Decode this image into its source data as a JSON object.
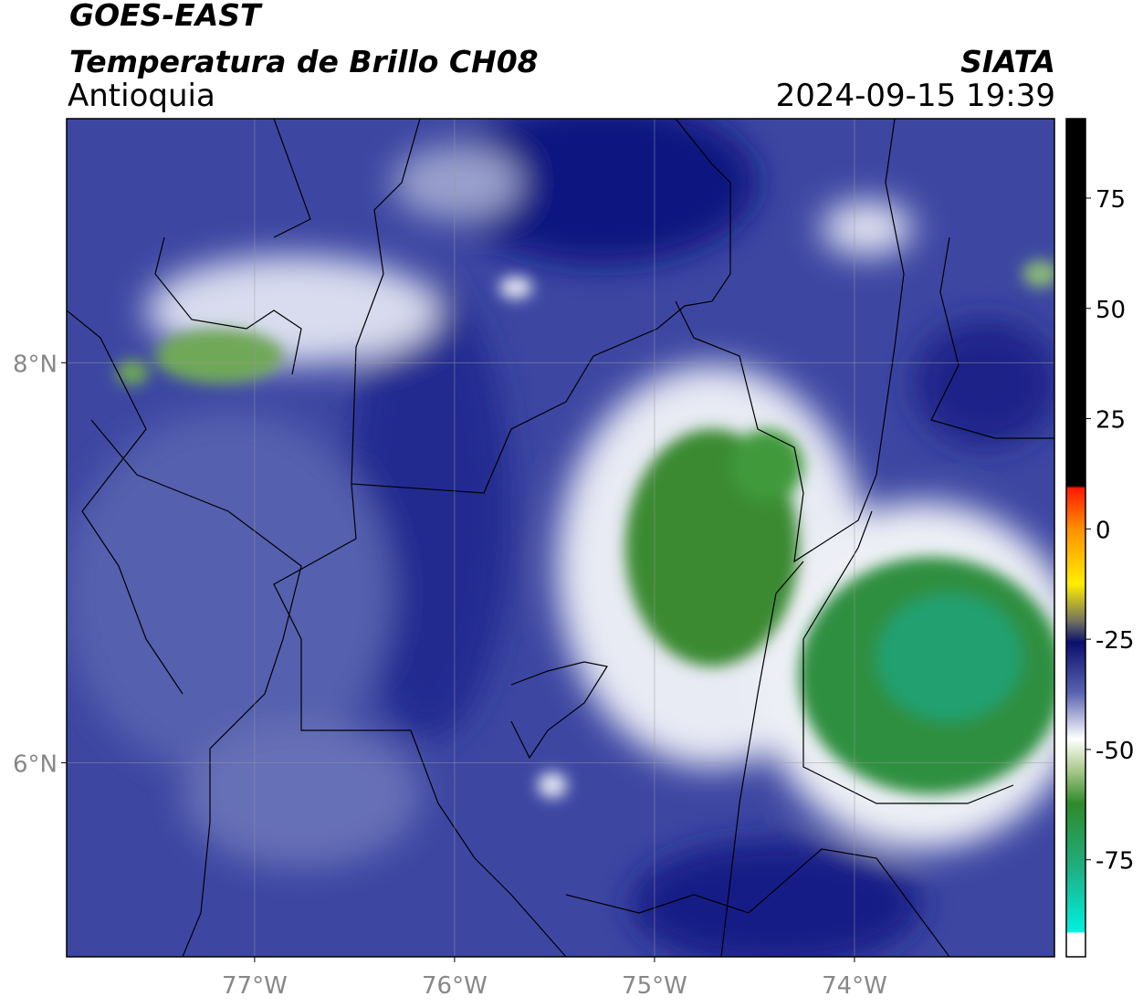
{
  "header": {
    "title": "GOES-EAST",
    "subtitle": "Temperatura de Brillo CH08",
    "region": "Antioquia",
    "source": "SIATA",
    "datetime": "2024-09-15 19:39"
  },
  "map": {
    "xlim": [
      -77.94,
      -73
    ],
    "ylim": [
      5.03,
      9.22
    ],
    "xticks": [
      {
        "value": -77,
        "label": "77°W"
      },
      {
        "value": -76,
        "label": "76°W"
      },
      {
        "value": -75,
        "label": "75°W"
      },
      {
        "value": -74,
        "label": "74°W"
      }
    ],
    "yticks": [
      {
        "value": 8,
        "label": "8°N"
      },
      {
        "value": 6,
        "label": "6°N"
      }
    ],
    "grid": true
  },
  "colorbar": {
    "lim": [
      -97,
      93
    ],
    "ticks": [
      75,
      50,
      25,
      0,
      -25,
      -50,
      -75
    ]
  }
}
